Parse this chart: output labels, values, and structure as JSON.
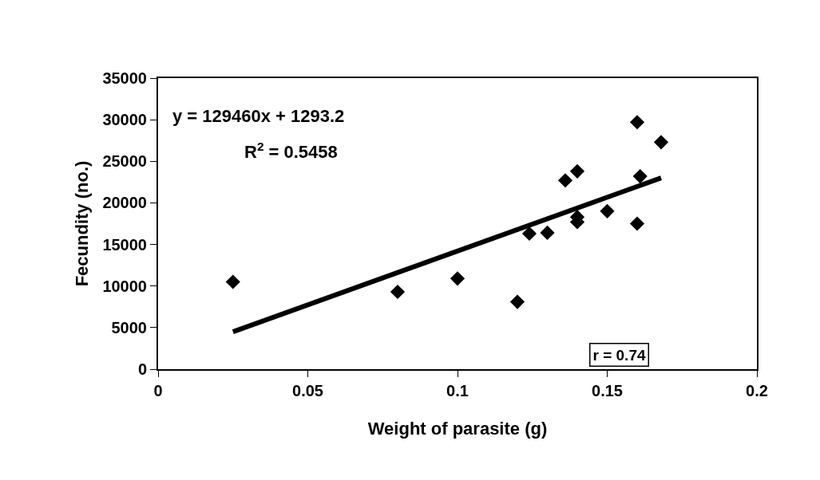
{
  "chart_data": {
    "type": "scatter",
    "xlabel": "Weight of parasite (g)",
    "ylabel": "Fecundity (no.)",
    "series": [
      {
        "color": "#000000",
        "marker": "diamond",
        "x": [
          0.025,
          0.08,
          0.1,
          0.12,
          0.124,
          0.13,
          0.136,
          0.14,
          0.14,
          0.14,
          0.15,
          0.16,
          0.16,
          0.161,
          0.168
        ],
        "values": [
          10500,
          9300,
          10900,
          8100,
          16300,
          16400,
          22700,
          23800,
          18300,
          17700,
          19000,
          29700,
          17500,
          23200,
          27300
        ]
      },
      {
        "type": "line",
        "color": "#000000",
        "marker": "none",
        "line_style": "solid",
        "x": [
          0.025,
          0.168
        ],
        "values": [
          4500,
          23000
        ]
      }
    ],
    "xlim": [
      0,
      0.2
    ],
    "xticks": [
      0,
      0.05,
      0.1,
      0.15,
      0.2
    ],
    "ylim": [
      0,
      35000
    ],
    "yticks": [
      0,
      5000,
      10000,
      15000,
      20000,
      25000,
      30000,
      35000
    ],
    "annotations": [
      "y = 129460x + 1293.2",
      "R$^{2}$ = 0.5458",
      "r = 0.74"
    ]
  }
}
